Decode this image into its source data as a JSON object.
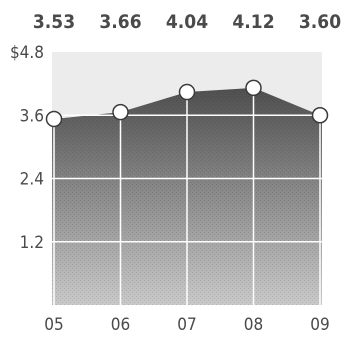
{
  "chart_data": {
    "type": "area",
    "title": "",
    "xlabel": "",
    "ylabel": "",
    "categories": [
      "05",
      "06",
      "07",
      "08",
      "09"
    ],
    "values": [
      3.53,
      3.66,
      4.04,
      4.12,
      3.6
    ],
    "value_labels": [
      "3.53",
      "3.66",
      "4.04",
      "4.12",
      "3.60"
    ],
    "y_ticks": [
      {
        "value": 4.8,
        "label": "$4.8"
      },
      {
        "value": 3.6,
        "label": "3.6"
      },
      {
        "value": 2.4,
        "label": "2.4"
      },
      {
        "value": 1.2,
        "label": "1.2"
      }
    ],
    "ylim": [
      0,
      4.8
    ],
    "grid": true,
    "legend": "none",
    "colors": {
      "area_top": "#4f4f4f",
      "area_bottom": "#c9c9c9",
      "grid": "#ffffff",
      "marker_fill": "#ffffff",
      "marker_stroke": "#3a3a3a",
      "text": "#4a4a4a"
    }
  }
}
